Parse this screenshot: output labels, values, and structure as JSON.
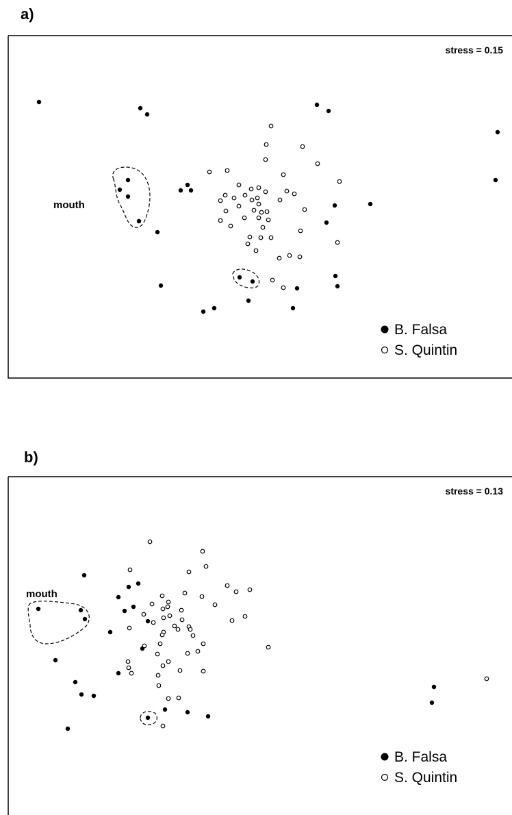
{
  "panels": {
    "a": {
      "label": "a)",
      "stress": "stress = 0.15",
      "annotation": "mouth"
    },
    "b": {
      "label": "b)",
      "stress": "stress = 0.13",
      "annotation": "mouth"
    }
  },
  "legend": {
    "b_falsa": "B. Falsa",
    "s_quintin": "S. Quintin"
  },
  "chart_data": [
    {
      "type": "scatter",
      "title": "",
      "xlabel": "",
      "ylabel": "",
      "axes_ticks": false,
      "grid": false,
      "legend_position": "bottom-right",
      "xlim": [
        0,
        740
      ],
      "ylim": [
        0,
        500
      ],
      "series": [
        {
          "name": "B. Falsa",
          "marker": "filled-circle",
          "points": [
            [
              45,
              97
            ],
            [
              193,
              106
            ],
            [
              203,
              115
            ],
            [
              451,
              101
            ],
            [
              468,
              110
            ],
            [
              715,
              141
            ],
            [
              712,
              211
            ],
            [
              175,
              211
            ],
            [
              163,
              225
            ],
            [
              175,
              235
            ],
            [
              191,
              271
            ],
            [
              218,
              287
            ],
            [
              252,
              226
            ],
            [
              262,
              218
            ],
            [
              267,
              226
            ],
            [
              529,
              246
            ],
            [
              477,
              248
            ],
            [
              465,
              273
            ],
            [
              223,
              365
            ],
            [
              338,
              353
            ],
            [
              357,
              359
            ],
            [
              351,
              387
            ],
            [
              422,
              369
            ],
            [
              301,
              398
            ],
            [
              285,
              403
            ],
            [
              416,
              398
            ],
            [
              478,
              351
            ],
            [
              481,
              366
            ]
          ]
        },
        {
          "name": "S. Quintin",
          "marker": "open-circle",
          "points": [
            [
              384,
              132
            ],
            [
              377,
              159
            ],
            [
              430,
              162
            ],
            [
              376,
              181
            ],
            [
              452,
              187
            ],
            [
              294,
              199
            ],
            [
              320,
              197
            ],
            [
              402,
              203
            ],
            [
              484,
              213
            ],
            [
              337,
              218
            ],
            [
              355,
              224
            ],
            [
              366,
              222
            ],
            [
              376,
              228
            ],
            [
              317,
              233
            ],
            [
              330,
              237
            ],
            [
              346,
              233
            ],
            [
              356,
              240
            ],
            [
              364,
              237
            ],
            [
              366,
              246
            ],
            [
              337,
              249
            ],
            [
              407,
              227
            ],
            [
              418,
              231
            ],
            [
              397,
              240
            ],
            [
              433,
              254
            ],
            [
              310,
              241
            ],
            [
              318,
              256
            ],
            [
              359,
              255
            ],
            [
              370,
              258
            ],
            [
              378,
              257
            ],
            [
              366,
              266
            ],
            [
              380,
              269
            ],
            [
              310,
              270
            ],
            [
              325,
              278
            ],
            [
              372,
              280
            ],
            [
              345,
              266
            ],
            [
              427,
              285
            ],
            [
              481,
              302
            ],
            [
              353,
              294
            ],
            [
              369,
              295
            ],
            [
              384,
              295
            ],
            [
              350,
              304
            ],
            [
              362,
              314
            ],
            [
              396,
              325
            ],
            [
              411,
              321
            ],
            [
              426,
              323
            ],
            [
              386,
              357
            ],
            [
              402,
              368
            ]
          ]
        }
      ],
      "hulls": [
        "mouth-left",
        "pair-bottom"
      ]
    },
    {
      "type": "scatter",
      "title": "",
      "xlabel": "",
      "ylabel": "",
      "axes_ticks": false,
      "grid": false,
      "legend_position": "bottom-right",
      "xlim": [
        0,
        740
      ],
      "ylim": [
        0,
        500
      ],
      "series": [
        {
          "name": "B. Falsa",
          "marker": "filled-circle",
          "points": [
            [
              111,
              144
            ],
            [
              176,
              161
            ],
            [
              190,
              156
            ],
            [
              161,
              176
            ],
            [
              183,
              190
            ],
            [
              170,
              196
            ],
            [
              204,
              211
            ],
            [
              149,
              227
            ],
            [
              44,
              193
            ],
            [
              106,
              195
            ],
            [
              112,
              208
            ],
            [
              69,
              268
            ],
            [
              196,
              251
            ],
            [
              161,
              287
            ],
            [
              98,
              300
            ],
            [
              107,
              318
            ],
            [
              125,
              320
            ],
            [
              204,
              352
            ],
            [
              229,
              340
            ],
            [
              262,
              344
            ],
            [
              292,
              350
            ],
            [
              87,
              368
            ],
            [
              622,
              307
            ],
            [
              619,
              330
            ]
          ]
        },
        {
          "name": "S. Quintin",
          "marker": "open-circle",
          "points": [
            [
              207,
              95
            ],
            [
              284,
              109
            ],
            [
              178,
              136
            ],
            [
              264,
              139
            ],
            [
              289,
              131
            ],
            [
              320,
              159
            ],
            [
              333,
              168
            ],
            [
              353,
              165
            ],
            [
              225,
              174
            ],
            [
              234,
              183
            ],
            [
              210,
              186
            ],
            [
              226,
              193
            ],
            [
              233,
              190
            ],
            [
              253,
              195
            ],
            [
              236,
              203
            ],
            [
              227,
              206
            ],
            [
              258,
              170
            ],
            [
              283,
              175
            ],
            [
              302,
              187
            ],
            [
              198,
              201
            ],
            [
              254,
              209
            ],
            [
              177,
              221
            ],
            [
              212,
              213
            ],
            [
              227,
              227
            ],
            [
              243,
              218
            ],
            [
              248,
              223
            ],
            [
              264,
              219
            ],
            [
              266,
              223
            ],
            [
              270,
              232
            ],
            [
              225,
              231
            ],
            [
              222,
              244
            ],
            [
              199,
              247
            ],
            [
              285,
              244
            ],
            [
              277,
              255
            ],
            [
              262,
              258
            ],
            [
              346,
              204
            ],
            [
              327,
              210
            ],
            [
              380,
              249
            ],
            [
              218,
              259
            ],
            [
              234,
              270
            ],
            [
              175,
              270
            ],
            [
              176,
              279
            ],
            [
              180,
              287
            ],
            [
              226,
              276
            ],
            [
              251,
              283
            ],
            [
              285,
              284
            ],
            [
              219,
              290
            ],
            [
              220,
              305
            ],
            [
              234,
              324
            ],
            [
              249,
              323
            ],
            [
              226,
              364
            ],
            [
              699,
              295
            ]
          ]
        }
      ],
      "hulls": [
        "mouth-left",
        "single-bottom"
      ]
    }
  ]
}
